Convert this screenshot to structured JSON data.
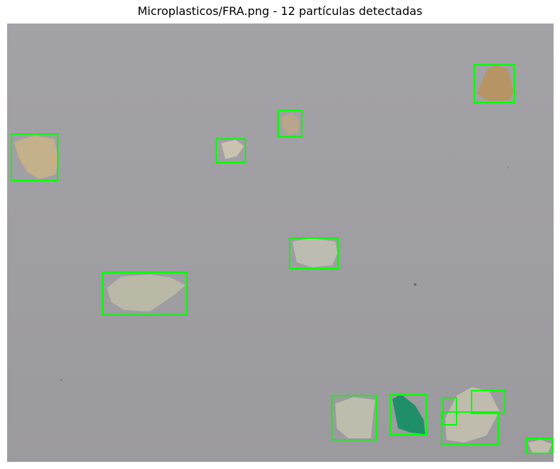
{
  "figure": {
    "title": "Microplasticos/FRA.png - 12 partículas detectadas"
  },
  "image": {
    "background_color": "#9d9ca0",
    "box_color": "#00ff00",
    "particle_count": 12
  }
}
